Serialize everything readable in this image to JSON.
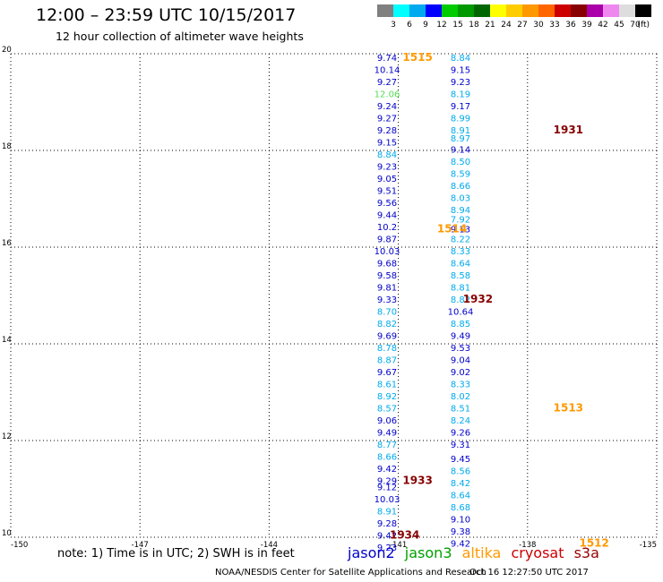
{
  "title": "12:00 – 23:59 UTC 10/15/2017",
  "subtitle": "12 hour collection of altimeter wave heights",
  "note": "note: 1) Time is in UTC; 2) SWH is in feet",
  "credit": "NOAA/NESDIS Center for Satellite Applications and Research",
  "timestamp": "Oct 16 12:27:50 UTC 2017",
  "legend": [
    {
      "name": "jason2",
      "color": "#0000cc"
    },
    {
      "name": "jason3",
      "color": "#00a000"
    },
    {
      "name": "altika",
      "color": "#ff9900"
    },
    {
      "name": "cryosat",
      "color": "#cc0000"
    },
    {
      "name": "s3a",
      "color": "#990000"
    }
  ],
  "colorbar": {
    "unit": "(ft)",
    "labels": [
      "3",
      "6",
      "9",
      "12",
      "15",
      "18",
      "21",
      "24",
      "27",
      "30",
      "33",
      "36",
      "39",
      "42",
      "45",
      "70"
    ],
    "colors": [
      "#808080",
      "#00ffff",
      "#00aaee",
      "#0000ff",
      "#00cc00",
      "#009900",
      "#006600",
      "#ffff00",
      "#ffcc00",
      "#ff9900",
      "#ff6600",
      "#cc0000",
      "#880000",
      "#aa00aa",
      "#ee88ee",
      "#dddddd",
      "#000000"
    ]
  },
  "chart_data": {
    "type": "scatter",
    "xlim": [
      -150,
      -135
    ],
    "ylim": [
      10,
      20
    ],
    "x_ticks": [
      "-150",
      "-147",
      "-144",
      "-141",
      "-138",
      "-135"
    ],
    "y_ticks": [
      "10",
      "12",
      "14",
      "16",
      "18",
      "20"
    ],
    "grid": true,
    "series": [
      {
        "points": [
          {
            "lat": 19.93,
            "text": "9.74",
            "color": "#0000cc"
          },
          {
            "lat": 19.68,
            "text": "10.14",
            "color": "#0000cc"
          },
          {
            "lat": 19.43,
            "text": "9.27",
            "color": "#0000cc"
          },
          {
            "lat": 19.18,
            "text": "12.06",
            "color": "#55dd55"
          },
          {
            "lat": 18.93,
            "text": "9.24",
            "color": "#0000cc"
          },
          {
            "lat": 18.68,
            "text": "9.27",
            "color": "#0000cc"
          },
          {
            "lat": 18.43,
            "text": "9.28",
            "color": "#0000cc"
          },
          {
            "lat": 18.18,
            "text": "9.15",
            "color": "#0000cc"
          },
          {
            "lat": 17.93,
            "text": "8.84",
            "color": "#00aaee"
          },
          {
            "lat": 17.68,
            "text": "9.23",
            "color": "#0000cc"
          },
          {
            "lat": 17.43,
            "text": "9.05",
            "color": "#0000cc"
          },
          {
            "lat": 17.18,
            "text": "9.51",
            "color": "#0000cc"
          },
          {
            "lat": 16.93,
            "text": "9.56",
            "color": "#0000cc"
          },
          {
            "lat": 16.68,
            "text": "9.44",
            "color": "#0000cc"
          },
          {
            "lat": 16.43,
            "text": "10.2",
            "color": "#0000cc"
          },
          {
            "lat": 16.18,
            "text": "9.87",
            "color": "#0000cc"
          },
          {
            "lat": 15.93,
            "text": "10.03",
            "color": "#0000cc"
          },
          {
            "lat": 15.68,
            "text": "9.68",
            "color": "#0000cc"
          },
          {
            "lat": 15.43,
            "text": "9.58",
            "color": "#0000cc"
          },
          {
            "lat": 15.18,
            "text": "9.81",
            "color": "#0000cc"
          },
          {
            "lat": 14.93,
            "text": "9.33",
            "color": "#0000cc"
          },
          {
            "lat": 14.68,
            "text": "8.70",
            "color": "#00aaee"
          },
          {
            "lat": 14.43,
            "text": "8.82",
            "color": "#00aaee"
          },
          {
            "lat": 14.18,
            "text": "9.69",
            "color": "#0000cc"
          },
          {
            "lat": 13.93,
            "text": "8.78",
            "color": "#00aaee"
          },
          {
            "lat": 13.68,
            "text": "8.87",
            "color": "#00aaee"
          },
          {
            "lat": 13.43,
            "text": "9.67",
            "color": "#0000cc"
          },
          {
            "lat": 13.18,
            "text": "8.61",
            "color": "#00aaee"
          },
          {
            "lat": 12.93,
            "text": "8.92",
            "color": "#00aaee"
          },
          {
            "lat": 12.68,
            "text": "8.57",
            "color": "#00aaee"
          },
          {
            "lat": 12.43,
            "text": "9.06",
            "color": "#0000cc"
          },
          {
            "lat": 12.18,
            "text": "9.49",
            "color": "#0000cc"
          },
          {
            "lat": 11.93,
            "text": "8.77",
            "color": "#00aaee"
          },
          {
            "lat": 11.68,
            "text": "8.66",
            "color": "#00aaee"
          },
          {
            "lat": 11.43,
            "text": "9.42",
            "color": "#0000cc"
          },
          {
            "lat": 11.18,
            "text": "9.29",
            "color": "#0000cc"
          },
          {
            "lat": 11.05,
            "text": "9.12",
            "color": "#0000cc"
          },
          {
            "lat": 10.8,
            "text": "10.03",
            "color": "#0000cc"
          },
          {
            "lat": 10.55,
            "text": "8.91",
            "color": "#00aaee"
          },
          {
            "lat": 10.3,
            "text": "9.28",
            "color": "#0000cc"
          },
          {
            "lat": 10.05,
            "text": "9.42",
            "color": "#0000cc"
          },
          {
            "lat": 9.8,
            "text": "9.23",
            "color": "#0000cc"
          }
        ]
      },
      {
        "points": [
          {
            "lat": 19.93,
            "text": "8.84",
            "color": "#00aaee"
          },
          {
            "lat": 19.68,
            "text": "9.15",
            "color": "#0000cc"
          },
          {
            "lat": 19.43,
            "text": "9.23",
            "color": "#0000cc"
          },
          {
            "lat": 19.18,
            "text": "8.19",
            "color": "#00aaee"
          },
          {
            "lat": 18.93,
            "text": "9.17",
            "color": "#0000cc"
          },
          {
            "lat": 18.68,
            "text": "8.99",
            "color": "#00aaee"
          },
          {
            "lat": 18.43,
            "text": "8.91",
            "color": "#00aaee"
          },
          {
            "lat": 18.26,
            "text": "8.97",
            "color": "#00aaee"
          },
          {
            "lat": 18.03,
            "text": "9.14",
            "color": "#0000cc"
          },
          {
            "lat": 17.78,
            "text": "8.50",
            "color": "#00aaee"
          },
          {
            "lat": 17.53,
            "text": "8.59",
            "color": "#00aaee"
          },
          {
            "lat": 17.28,
            "text": "8.66",
            "color": "#00aaee"
          },
          {
            "lat": 17.03,
            "text": "8.03",
            "color": "#00aaee"
          },
          {
            "lat": 16.78,
            "text": "8.94",
            "color": "#00aaee"
          },
          {
            "lat": 16.58,
            "text": "7.92",
            "color": "#00aaee"
          },
          {
            "lat": 16.38,
            "text": "9.13",
            "color": "#0000cc"
          },
          {
            "lat": 16.18,
            "text": "8.22",
            "color": "#00aaee"
          },
          {
            "lat": 15.93,
            "text": "8.33",
            "color": "#00aaee"
          },
          {
            "lat": 15.68,
            "text": "8.64",
            "color": "#00aaee"
          },
          {
            "lat": 15.43,
            "text": "8.58",
            "color": "#00aaee"
          },
          {
            "lat": 15.18,
            "text": "8.81",
            "color": "#00aaee"
          },
          {
            "lat": 14.93,
            "text": "8.82",
            "color": "#00aaee"
          },
          {
            "lat": 14.68,
            "text": "10.64",
            "color": "#0000cc"
          },
          {
            "lat": 14.43,
            "text": "8.85",
            "color": "#00aaee"
          },
          {
            "lat": 14.18,
            "text": "9.49",
            "color": "#0000cc"
          },
          {
            "lat": 13.93,
            "text": "9.53",
            "color": "#0000cc"
          },
          {
            "lat": 13.68,
            "text": "9.04",
            "color": "#0000cc"
          },
          {
            "lat": 13.43,
            "text": "9.02",
            "color": "#0000cc"
          },
          {
            "lat": 13.18,
            "text": "8.33",
            "color": "#00aaee"
          },
          {
            "lat": 12.93,
            "text": "8.02",
            "color": "#00aaee"
          },
          {
            "lat": 12.68,
            "text": "8.51",
            "color": "#00aaee"
          },
          {
            "lat": 12.43,
            "text": "8.24",
            "color": "#00aaee"
          },
          {
            "lat": 12.18,
            "text": "9.26",
            "color": "#0000cc"
          },
          {
            "lat": 11.93,
            "text": "9.31",
            "color": "#0000cc"
          },
          {
            "lat": 11.63,
            "text": "9.45",
            "color": "#0000cc"
          },
          {
            "lat": 11.38,
            "text": "8.56",
            "color": "#00aaee"
          },
          {
            "lat": 11.13,
            "text": "8.42",
            "color": "#00aaee"
          },
          {
            "lat": 10.88,
            "text": "8.64",
            "color": "#00aaee"
          },
          {
            "lat": 10.63,
            "text": "8.68",
            "color": "#00aaee"
          },
          {
            "lat": 10.38,
            "text": "9.10",
            "color": "#0000cc"
          },
          {
            "lat": 10.13,
            "text": "9.38",
            "color": "#0000cc"
          },
          {
            "lat": 9.88,
            "text": "9.42",
            "color": "#0000cc"
          }
        ]
      }
    ],
    "pass_labels": [
      {
        "text": "1515",
        "lon": -140.9,
        "lat": 19.93,
        "color": "#ff9900"
      },
      {
        "text": "1931",
        "lon": -137.4,
        "lat": 18.43,
        "color": "#880000"
      },
      {
        "text": "1514",
        "lon": -140.1,
        "lat": 16.38,
        "color": "#ff9900"
      },
      {
        "text": "1932",
        "lon": -139.5,
        "lat": 14.93,
        "color": "#880000"
      },
      {
        "text": "1513",
        "lon": -137.4,
        "lat": 12.68,
        "color": "#ff9900"
      },
      {
        "text": "1933",
        "lon": -140.9,
        "lat": 11.18,
        "color": "#880000"
      },
      {
        "text": "1934",
        "lon": -141.2,
        "lat": 10.05,
        "color": "#880000"
      },
      {
        "text": "1512",
        "lon": -136.8,
        "lat": 9.88,
        "color": "#ff9900"
      }
    ]
  }
}
